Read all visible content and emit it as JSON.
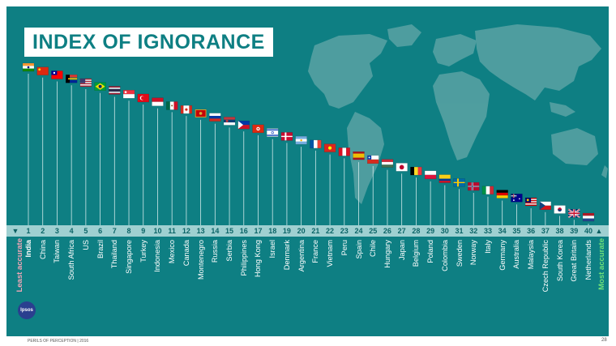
{
  "title": "INDEX OF IGNORANCE",
  "labels": {
    "least": "Least accurate",
    "most": "Most accurate"
  },
  "logo": "Ipsos",
  "footer": "PERILS OF PERCEPTION | 2016",
  "page_number": "28",
  "colors": {
    "background": "#0e7f83",
    "band": "#9fd0d1",
    "map": "#5aa3a5",
    "least": "#f4a6b7",
    "most": "#6ee27a"
  },
  "countries": [
    {
      "rank": "1",
      "name": "India"
    },
    {
      "rank": "2",
      "name": "China"
    },
    {
      "rank": "3",
      "name": "Taiwan"
    },
    {
      "rank": "4",
      "name": "South Africa"
    },
    {
      "rank": "5",
      "name": "US"
    },
    {
      "rank": "6",
      "name": "Brazil"
    },
    {
      "rank": "7",
      "name": "Thailand"
    },
    {
      "rank": "8",
      "name": "Singapore"
    },
    {
      "rank": "9",
      "name": "Turkey"
    },
    {
      "rank": "10",
      "name": "Indonesia"
    },
    {
      "rank": "11",
      "name": "Mexico"
    },
    {
      "rank": "12",
      "name": "Canada"
    },
    {
      "rank": "13",
      "name": "Montenegro"
    },
    {
      "rank": "14",
      "name": "Russia"
    },
    {
      "rank": "15",
      "name": "Serbia"
    },
    {
      "rank": "16",
      "name": "Philippines"
    },
    {
      "rank": "17",
      "name": "Hong Kong"
    },
    {
      "rank": "18",
      "name": "Israel"
    },
    {
      "rank": "19",
      "name": "Denmark"
    },
    {
      "rank": "20",
      "name": "Argentina"
    },
    {
      "rank": "21",
      "name": "France"
    },
    {
      "rank": "22",
      "name": "Vietnam"
    },
    {
      "rank": "23",
      "name": "Peru"
    },
    {
      "rank": "24",
      "name": "Spain"
    },
    {
      "rank": "25",
      "name": "Chile"
    },
    {
      "rank": "26",
      "name": "Hungary"
    },
    {
      "rank": "27",
      "name": "Japan"
    },
    {
      "rank": "28",
      "name": "Belgium"
    },
    {
      "rank": "29",
      "name": "Poland"
    },
    {
      "rank": "30",
      "name": "Colombia"
    },
    {
      "rank": "31",
      "name": "Sweden"
    },
    {
      "rank": "32",
      "name": "Norway"
    },
    {
      "rank": "33",
      "name": "Italy"
    },
    {
      "rank": "34",
      "name": "Germany"
    },
    {
      "rank": "35",
      "name": "Australia"
    },
    {
      "rank": "36",
      "name": "Malaysia"
    },
    {
      "rank": "37",
      "name": "Czech Republic"
    },
    {
      "rank": "38",
      "name": "South Korea"
    },
    {
      "rank": "39",
      "name": "Great Britain"
    },
    {
      "rank": "40",
      "name": "Netherlands"
    }
  ],
  "flag_icons": [
    "india-flag-icon",
    "china-flag-icon",
    "taiwan-flag-icon",
    "south-africa-flag-icon",
    "us-flag-icon",
    "brazil-flag-icon",
    "thailand-flag-icon",
    "singapore-flag-icon",
    "turkey-flag-icon",
    "indonesia-flag-icon",
    "mexico-flag-icon",
    "canada-flag-icon",
    "montenegro-flag-icon",
    "russia-flag-icon",
    "serbia-flag-icon",
    "philippines-flag-icon",
    "hong-kong-flag-icon",
    "israel-flag-icon",
    "denmark-flag-icon",
    "argentina-flag-icon",
    "france-flag-icon",
    "vietnam-flag-icon",
    "peru-flag-icon",
    "spain-flag-icon",
    "chile-flag-icon",
    "hungary-flag-icon",
    "japan-flag-icon",
    "belgium-flag-icon",
    "poland-flag-icon",
    "colombia-flag-icon",
    "sweden-flag-icon",
    "norway-flag-icon",
    "italy-flag-icon",
    "germany-flag-icon",
    "australia-flag-icon",
    "malaysia-flag-icon",
    "czech-republic-flag-icon",
    "south-korea-flag-icon",
    "great-britain-flag-icon",
    "netherlands-flag-icon"
  ]
}
